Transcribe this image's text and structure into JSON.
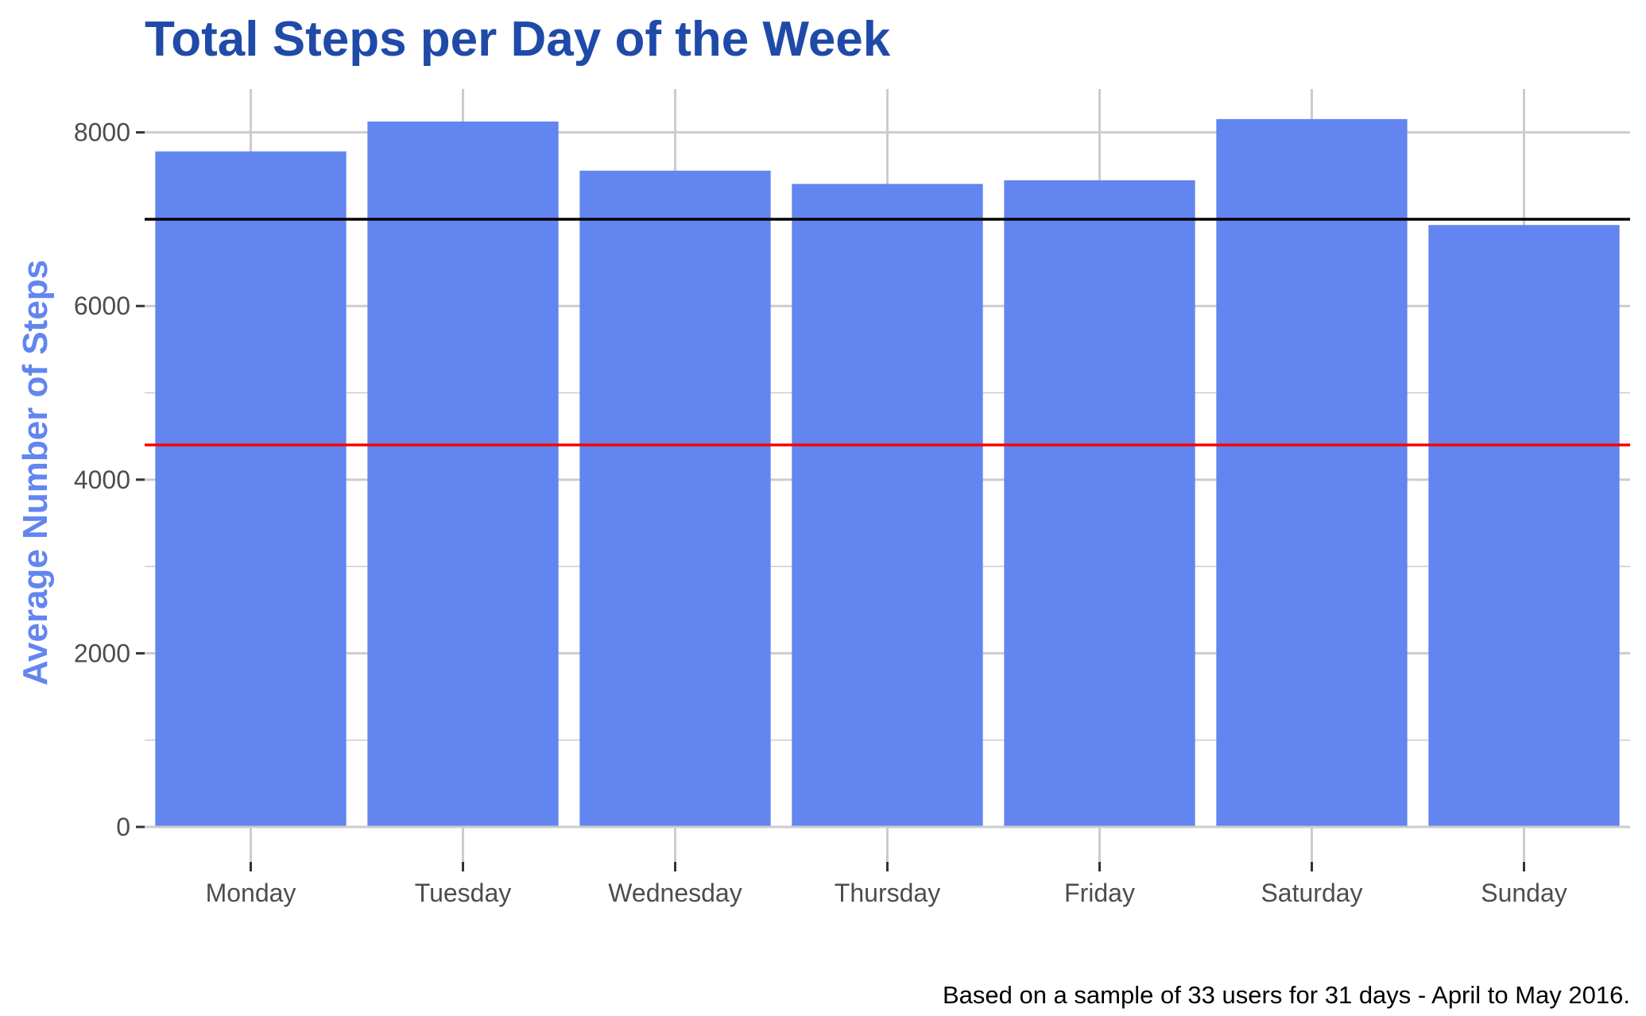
{
  "chart_data": {
    "type": "bar",
    "title": "Total Steps per Day of the Week",
    "xlabel": "",
    "ylabel": "Average Number of Steps",
    "caption": "Based on a sample of 33 users for 31 days - April to May 2016.",
    "categories": [
      "Monday",
      "Tuesday",
      "Wednesday",
      "Thursday",
      "Friday",
      "Saturday",
      "Sunday"
    ],
    "values": [
      7781,
      8125,
      7559,
      7406,
      7448,
      8153,
      6933
    ],
    "ylim": [
      0,
      8500
    ],
    "yticks": [
      "0",
      "2000",
      "4000",
      "6000",
      "8000"
    ],
    "reference_lines": [
      {
        "value": 7000,
        "color": "#000000"
      },
      {
        "value": 4400,
        "color": "#ff0000"
      }
    ],
    "grid": true,
    "legend": "none"
  },
  "colors": {
    "bar": "#6285ef",
    "title": "#1f4aa8",
    "ylabel": "#6285ef",
    "grid": "#cccccc"
  }
}
